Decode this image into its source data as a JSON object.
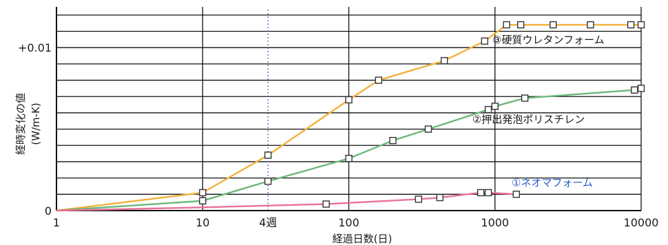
{
  "chart_data": {
    "type": "line",
    "xscale": "log",
    "xlim": [
      1,
      10000
    ],
    "ylim": [
      0,
      0.0125
    ],
    "xlabel": "経過日数(日)",
    "ylabel_line1": "経時変化の値",
    "ylabel_line2": "(W/m-K)",
    "x_ticks": [
      {
        "value": 1,
        "label": "1"
      },
      {
        "value": 10,
        "label": "10"
      },
      {
        "value": 100,
        "label": "100"
      },
      {
        "value": 1000,
        "label": "1000"
      },
      {
        "value": 10000,
        "label": "10000"
      }
    ],
    "week_marker": {
      "value": 28,
      "label": "4週"
    },
    "y_ticks": [
      {
        "value": 0,
        "label": "0"
      },
      {
        "value": 0.01,
        "label": "+0.01"
      }
    ],
    "grid": true,
    "series": [
      {
        "name": "③硬質ウレタンフォーム",
        "color": "#f2b13d",
        "points": [
          {
            "x": 1,
            "y": 0
          },
          {
            "x": 10,
            "y": 0.0011
          },
          {
            "x": 28,
            "y": 0.0034
          },
          {
            "x": 100,
            "y": 0.0068
          },
          {
            "x": 160,
            "y": 0.008
          },
          {
            "x": 450,
            "y": 0.0092
          },
          {
            "x": 850,
            "y": 0.0104
          },
          {
            "x": 1200,
            "y": 0.0114
          },
          {
            "x": 1500,
            "y": 0.0114
          },
          {
            "x": 2500,
            "y": 0.0114
          },
          {
            "x": 4500,
            "y": 0.0114
          },
          {
            "x": 8500,
            "y": 0.0114
          },
          {
            "x": 10000,
            "y": 0.0114
          }
        ],
        "marker_from": 1
      },
      {
        "name": "②押出発泡ポリスチレン",
        "color": "#6bb87a",
        "points": [
          {
            "x": 1,
            "y": 0
          },
          {
            "x": 10,
            "y": 0.0006
          },
          {
            "x": 28,
            "y": 0.0018
          },
          {
            "x": 100,
            "y": 0.0032
          },
          {
            "x": 200,
            "y": 0.0043
          },
          {
            "x": 350,
            "y": 0.005
          },
          {
            "x": 900,
            "y": 0.0062
          },
          {
            "x": 1000,
            "y": 0.0064
          },
          {
            "x": 1600,
            "y": 0.0069
          },
          {
            "x": 9000,
            "y": 0.0074
          },
          {
            "x": 10000,
            "y": 0.0075
          }
        ],
        "marker_from": 1
      },
      {
        "name": "①ネオマフォーム",
        "color": "#e8709a",
        "points": [
          {
            "x": 1,
            "y": 0
          },
          {
            "x": 10,
            "y": 0.0002
          },
          {
            "x": 70,
            "y": 0.0004
          },
          {
            "x": 300,
            "y": 0.0007
          },
          {
            "x": 420,
            "y": 0.0008
          },
          {
            "x": 800,
            "y": 0.0011
          },
          {
            "x": 900,
            "y": 0.0011
          },
          {
            "x": 1400,
            "y": 0.001
          }
        ],
        "marker_from": 2
      }
    ],
    "series_label_colors": [
      "#1a1a1a",
      "#1a1a1a",
      "#2a5cc8"
    ]
  }
}
